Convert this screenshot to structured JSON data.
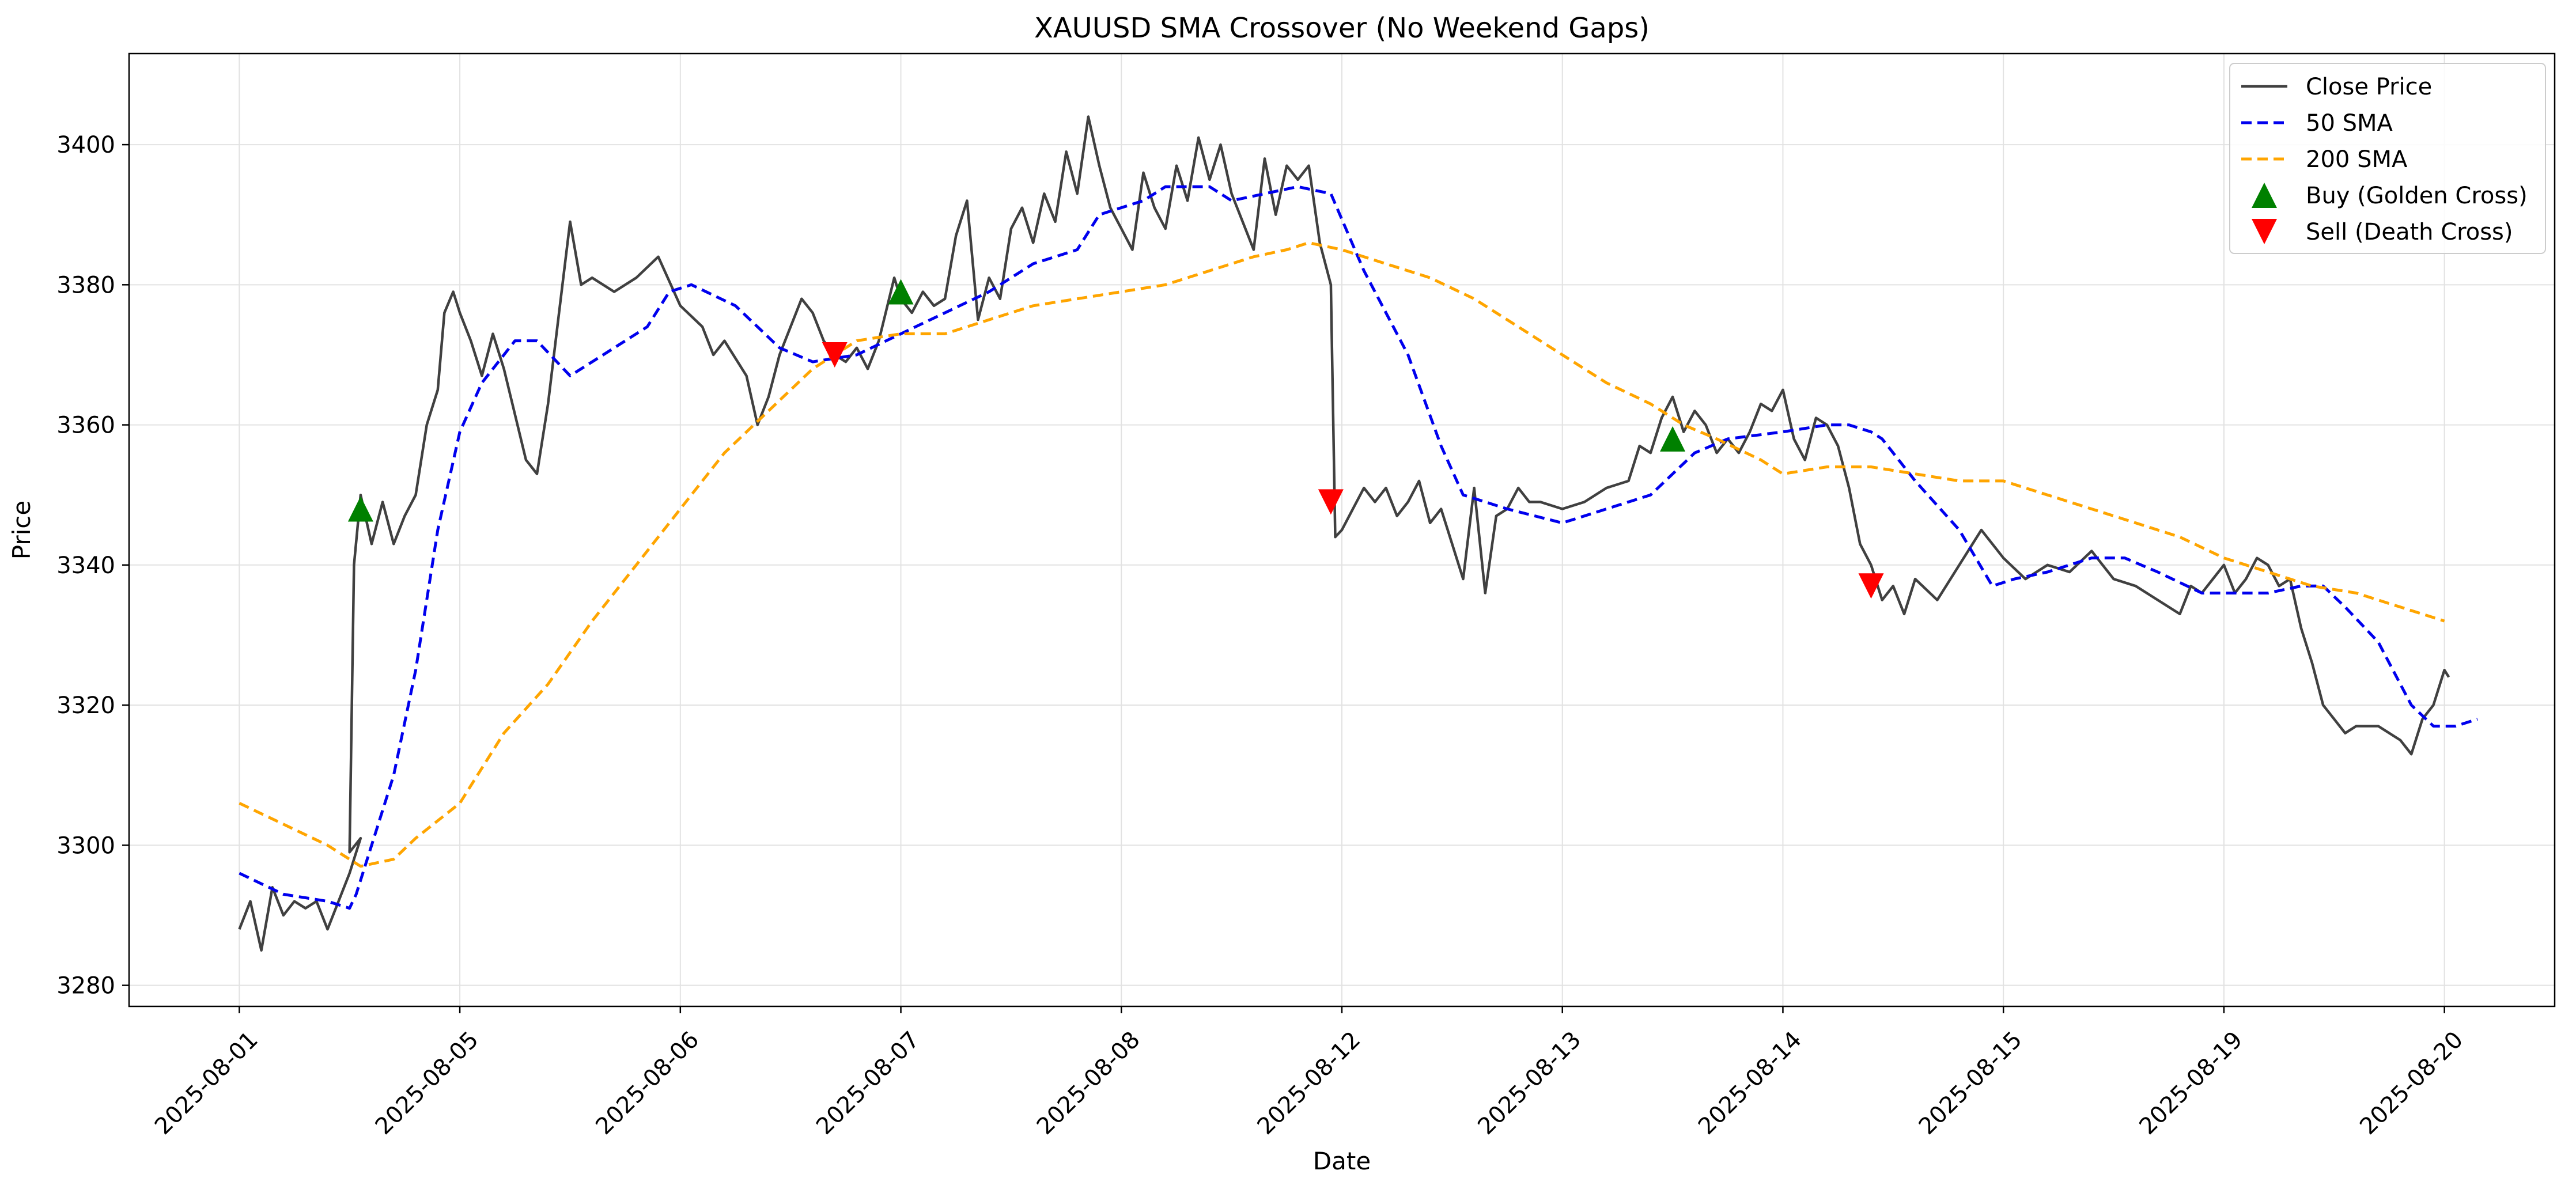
{
  "chart_data": {
    "type": "line",
    "title": "XAUUSD SMA Crossover (No Weekend Gaps)",
    "xlabel": "Date",
    "ylabel": "Price",
    "x_ticks": [
      "2025-08-01",
      "2025-08-05",
      "2025-08-06",
      "2025-08-07",
      "2025-08-08",
      "2025-08-12",
      "2025-08-13",
      "2025-08-14",
      "2025-08-15",
      "2025-08-19",
      "2025-08-20"
    ],
    "y_ticks": [
      3280,
      3300,
      3320,
      3340,
      3360,
      3380,
      3400
    ],
    "xlim": [
      -0.5,
      10.5
    ],
    "ylim": [
      3277,
      3413
    ],
    "grid": true,
    "legend_position": "top-right",
    "series": [
      {
        "name": "Close Price",
        "color": "#404040",
        "style": "solid",
        "points": [
          [
            0,
            3288
          ],
          [
            0.05,
            3292
          ],
          [
            0.1,
            3285
          ],
          [
            0.15,
            3294
          ],
          [
            0.2,
            3290
          ],
          [
            0.25,
            3292
          ],
          [
            0.3,
            3291
          ],
          [
            0.35,
            3292
          ],
          [
            0.4,
            3288
          ],
          [
            0.45,
            3292
          ],
          [
            0.5,
            3296
          ],
          [
            0.55,
            3301
          ],
          [
            0.5,
            3299
          ],
          [
            0.52,
            3340
          ],
          [
            0.55,
            3350
          ],
          [
            0.6,
            3343
          ],
          [
            0.65,
            3349
          ],
          [
            0.7,
            3343
          ],
          [
            0.75,
            3347
          ],
          [
            0.8,
            3350
          ],
          [
            0.85,
            3360
          ],
          [
            0.9,
            3365
          ],
          [
            0.93,
            3376
          ],
          [
            0.97,
            3379
          ],
          [
            1.0,
            3376
          ],
          [
            1.05,
            3372
          ],
          [
            1.1,
            3367
          ],
          [
            1.15,
            3373
          ],
          [
            1.2,
            3368
          ],
          [
            1.3,
            3355
          ],
          [
            1.35,
            3353
          ],
          [
            1.4,
            3363
          ],
          [
            1.45,
            3376
          ],
          [
            1.5,
            3389
          ],
          [
            1.55,
            3380
          ],
          [
            1.6,
            3381
          ],
          [
            1.7,
            3379
          ],
          [
            1.8,
            3381
          ],
          [
            1.9,
            3384
          ],
          [
            2.0,
            3377
          ],
          [
            2.1,
            3374
          ],
          [
            2.15,
            3370
          ],
          [
            2.2,
            3372
          ],
          [
            2.3,
            3367
          ],
          [
            2.35,
            3360
          ],
          [
            2.4,
            3364
          ],
          [
            2.45,
            3370
          ],
          [
            2.55,
            3378
          ],
          [
            2.6,
            3376
          ],
          [
            2.65,
            3372
          ],
          [
            2.7,
            3370
          ],
          [
            2.75,
            3369
          ],
          [
            2.8,
            3371
          ],
          [
            2.85,
            3368
          ],
          [
            2.9,
            3372
          ],
          [
            2.97,
            3381
          ],
          [
            3.0,
            3378
          ],
          [
            3.05,
            3376
          ],
          [
            3.1,
            3379
          ],
          [
            3.15,
            3377
          ],
          [
            3.2,
            3378
          ],
          [
            3.25,
            3387
          ],
          [
            3.3,
            3392
          ],
          [
            3.35,
            3375
          ],
          [
            3.4,
            3381
          ],
          [
            3.45,
            3378
          ],
          [
            3.5,
            3388
          ],
          [
            3.55,
            3391
          ],
          [
            3.6,
            3386
          ],
          [
            3.65,
            3393
          ],
          [
            3.7,
            3389
          ],
          [
            3.75,
            3399
          ],
          [
            3.8,
            3393
          ],
          [
            3.85,
            3404
          ],
          [
            3.9,
            3397
          ],
          [
            3.95,
            3391
          ],
          [
            4.0,
            3388
          ],
          [
            4.05,
            3385
          ],
          [
            4.1,
            3396
          ],
          [
            4.15,
            3391
          ],
          [
            4.2,
            3388
          ],
          [
            4.25,
            3397
          ],
          [
            4.3,
            3392
          ],
          [
            4.35,
            3401
          ],
          [
            4.4,
            3395
          ],
          [
            4.45,
            3400
          ],
          [
            4.5,
            3393
          ],
          [
            4.55,
            3389
          ],
          [
            4.6,
            3385
          ],
          [
            4.65,
            3398
          ],
          [
            4.7,
            3390
          ],
          [
            4.75,
            3397
          ],
          [
            4.8,
            3395
          ],
          [
            4.85,
            3397
          ],
          [
            4.9,
            3386
          ],
          [
            4.95,
            3380
          ],
          [
            4.97,
            3344
          ],
          [
            5.0,
            3345
          ],
          [
            5.05,
            3348
          ],
          [
            5.1,
            3351
          ],
          [
            5.15,
            3349
          ],
          [
            5.2,
            3351
          ],
          [
            5.25,
            3347
          ],
          [
            5.3,
            3349
          ],
          [
            5.35,
            3352
          ],
          [
            5.4,
            3346
          ],
          [
            5.45,
            3348
          ],
          [
            5.5,
            3343
          ],
          [
            5.55,
            3338
          ],
          [
            5.6,
            3351
          ],
          [
            5.65,
            3336
          ],
          [
            5.7,
            3347
          ],
          [
            5.75,
            3348
          ],
          [
            5.8,
            3351
          ],
          [
            5.85,
            3349
          ],
          [
            5.9,
            3349
          ],
          [
            6.0,
            3348
          ],
          [
            6.1,
            3349
          ],
          [
            6.2,
            3351
          ],
          [
            6.3,
            3352
          ],
          [
            6.35,
            3357
          ],
          [
            6.4,
            3356
          ],
          [
            6.45,
            3361
          ],
          [
            6.5,
            3364
          ],
          [
            6.55,
            3359
          ],
          [
            6.6,
            3362
          ],
          [
            6.65,
            3360
          ],
          [
            6.7,
            3356
          ],
          [
            6.75,
            3358
          ],
          [
            6.8,
            3356
          ],
          [
            6.85,
            3359
          ],
          [
            6.9,
            3363
          ],
          [
            6.95,
            3362
          ],
          [
            7.0,
            3365
          ],
          [
            7.05,
            3358
          ],
          [
            7.1,
            3355
          ],
          [
            7.15,
            3361
          ],
          [
            7.2,
            3360
          ],
          [
            7.25,
            3357
          ],
          [
            7.3,
            3351
          ],
          [
            7.35,
            3343
          ],
          [
            7.4,
            3340
          ],
          [
            7.45,
            3335
          ],
          [
            7.5,
            3337
          ],
          [
            7.55,
            3333
          ],
          [
            7.6,
            3338
          ],
          [
            7.7,
            3335
          ],
          [
            7.8,
            3340
          ],
          [
            7.9,
            3345
          ],
          [
            8.0,
            3341
          ],
          [
            8.1,
            3338
          ],
          [
            8.2,
            3340
          ],
          [
            8.3,
            3339
          ],
          [
            8.4,
            3342
          ],
          [
            8.5,
            3338
          ],
          [
            8.6,
            3337
          ],
          [
            8.7,
            3335
          ],
          [
            8.8,
            3333
          ],
          [
            8.85,
            3337
          ],
          [
            8.9,
            3336
          ],
          [
            9.0,
            3340
          ],
          [
            9.05,
            3336
          ],
          [
            9.1,
            3338
          ],
          [
            9.15,
            3341
          ],
          [
            9.2,
            3340
          ],
          [
            9.25,
            3337
          ],
          [
            9.3,
            3338
          ],
          [
            9.35,
            3331
          ],
          [
            9.4,
            3326
          ],
          [
            9.45,
            3320
          ],
          [
            9.5,
            3318
          ],
          [
            9.55,
            3316
          ],
          [
            9.6,
            3317
          ],
          [
            9.7,
            3317
          ],
          [
            9.8,
            3315
          ],
          [
            9.85,
            3313
          ],
          [
            9.9,
            3318
          ],
          [
            9.95,
            3320
          ],
          [
            10.0,
            3325
          ],
          [
            10.02,
            3324
          ]
        ]
      },
      {
        "name": "50 SMA",
        "color": "#0000ee",
        "style": "dashed",
        "points": [
          [
            0,
            3296
          ],
          [
            0.2,
            3293
          ],
          [
            0.4,
            3292
          ],
          [
            0.5,
            3291
          ],
          [
            0.53,
            3293
          ],
          [
            0.7,
            3310
          ],
          [
            0.8,
            3325
          ],
          [
            0.9,
            3345
          ],
          [
            1.0,
            3359
          ],
          [
            1.1,
            3366
          ],
          [
            1.25,
            3372
          ],
          [
            1.35,
            3372
          ],
          [
            1.5,
            3367
          ],
          [
            1.65,
            3370
          ],
          [
            1.85,
            3374
          ],
          [
            1.95,
            3379
          ],
          [
            2.05,
            3380
          ],
          [
            2.25,
            3377
          ],
          [
            2.45,
            3371
          ],
          [
            2.6,
            3369
          ],
          [
            2.8,
            3370
          ],
          [
            3.0,
            3373
          ],
          [
            3.2,
            3376
          ],
          [
            3.4,
            3379
          ],
          [
            3.6,
            3383
          ],
          [
            3.8,
            3385
          ],
          [
            3.9,
            3390
          ],
          [
            4.1,
            3392
          ],
          [
            4.2,
            3394
          ],
          [
            4.4,
            3394
          ],
          [
            4.5,
            3392
          ],
          [
            4.8,
            3394
          ],
          [
            4.95,
            3393
          ],
          [
            5.1,
            3382
          ],
          [
            5.3,
            3370
          ],
          [
            5.45,
            3357
          ],
          [
            5.55,
            3350
          ],
          [
            5.75,
            3348
          ],
          [
            6.0,
            3346
          ],
          [
            6.2,
            3348
          ],
          [
            6.4,
            3350
          ],
          [
            6.6,
            3356
          ],
          [
            6.75,
            3358
          ],
          [
            7.0,
            3359
          ],
          [
            7.2,
            3360
          ],
          [
            7.3,
            3360
          ],
          [
            7.4,
            3359
          ],
          [
            7.45,
            3358
          ],
          [
            7.6,
            3352
          ],
          [
            7.8,
            3345
          ],
          [
            7.95,
            3337
          ],
          [
            8.05,
            3338
          ],
          [
            8.2,
            3339
          ],
          [
            8.4,
            3341
          ],
          [
            8.55,
            3341
          ],
          [
            8.7,
            3339
          ],
          [
            8.9,
            3336
          ],
          [
            9.2,
            3336
          ],
          [
            9.35,
            3337
          ],
          [
            9.45,
            3337
          ],
          [
            9.55,
            3334
          ],
          [
            9.7,
            3329
          ],
          [
            9.85,
            3320
          ],
          [
            9.95,
            3317
          ],
          [
            10.05,
            3317
          ],
          [
            10.15,
            3318
          ]
        ]
      },
      {
        "name": "200 SMA",
        "color": "#ffa500",
        "style": "dashed",
        "points": [
          [
            0,
            3306
          ],
          [
            0.2,
            3303
          ],
          [
            0.4,
            3300
          ],
          [
            0.55,
            3297
          ],
          [
            0.7,
            3298
          ],
          [
            0.8,
            3301
          ],
          [
            1.0,
            3306
          ],
          [
            1.2,
            3316
          ],
          [
            1.4,
            3323
          ],
          [
            1.6,
            3332
          ],
          [
            1.8,
            3340
          ],
          [
            2.0,
            3348
          ],
          [
            2.2,
            3356
          ],
          [
            2.4,
            3362
          ],
          [
            2.6,
            3368
          ],
          [
            2.8,
            3372
          ],
          [
            3.0,
            3373
          ],
          [
            3.2,
            3373
          ],
          [
            3.4,
            3375
          ],
          [
            3.6,
            3377
          ],
          [
            3.8,
            3378
          ],
          [
            4.0,
            3379
          ],
          [
            4.2,
            3380
          ],
          [
            4.4,
            3382
          ],
          [
            4.6,
            3384
          ],
          [
            4.75,
            3385
          ],
          [
            4.85,
            3386
          ],
          [
            5.0,
            3385
          ],
          [
            5.2,
            3383
          ],
          [
            5.4,
            3381
          ],
          [
            5.6,
            3378
          ],
          [
            5.8,
            3374
          ],
          [
            6.0,
            3370
          ],
          [
            6.2,
            3366
          ],
          [
            6.4,
            3363
          ],
          [
            6.55,
            3360
          ],
          [
            6.7,
            3358
          ],
          [
            6.9,
            3355
          ],
          [
            7.0,
            3353
          ],
          [
            7.2,
            3354
          ],
          [
            7.4,
            3354
          ],
          [
            7.6,
            3353
          ],
          [
            7.8,
            3352
          ],
          [
            8.0,
            3352
          ],
          [
            8.2,
            3350
          ],
          [
            8.4,
            3348
          ],
          [
            8.6,
            3346
          ],
          [
            8.8,
            3344
          ],
          [
            9.0,
            3341
          ],
          [
            9.2,
            3339
          ],
          [
            9.4,
            3337
          ],
          [
            9.6,
            3336
          ],
          [
            9.8,
            3334
          ],
          [
            10.0,
            3332
          ]
        ]
      }
    ],
    "markers": [
      {
        "name": "Buy (Golden Cross)",
        "color": "#008000",
        "direction": "up",
        "points": [
          [
            0.55,
            3348
          ],
          [
            3.0,
            3379
          ],
          [
            6.5,
            3358
          ]
        ]
      },
      {
        "name": "Sell (Death Cross)",
        "color": "#ff0000",
        "direction": "down",
        "points": [
          [
            2.7,
            3370
          ],
          [
            4.95,
            3349
          ],
          [
            7.4,
            3337
          ]
        ]
      }
    ],
    "legend": [
      "Close Price",
      "50 SMA",
      "200 SMA",
      "Buy (Golden Cross)",
      "Sell (Death Cross)"
    ]
  }
}
